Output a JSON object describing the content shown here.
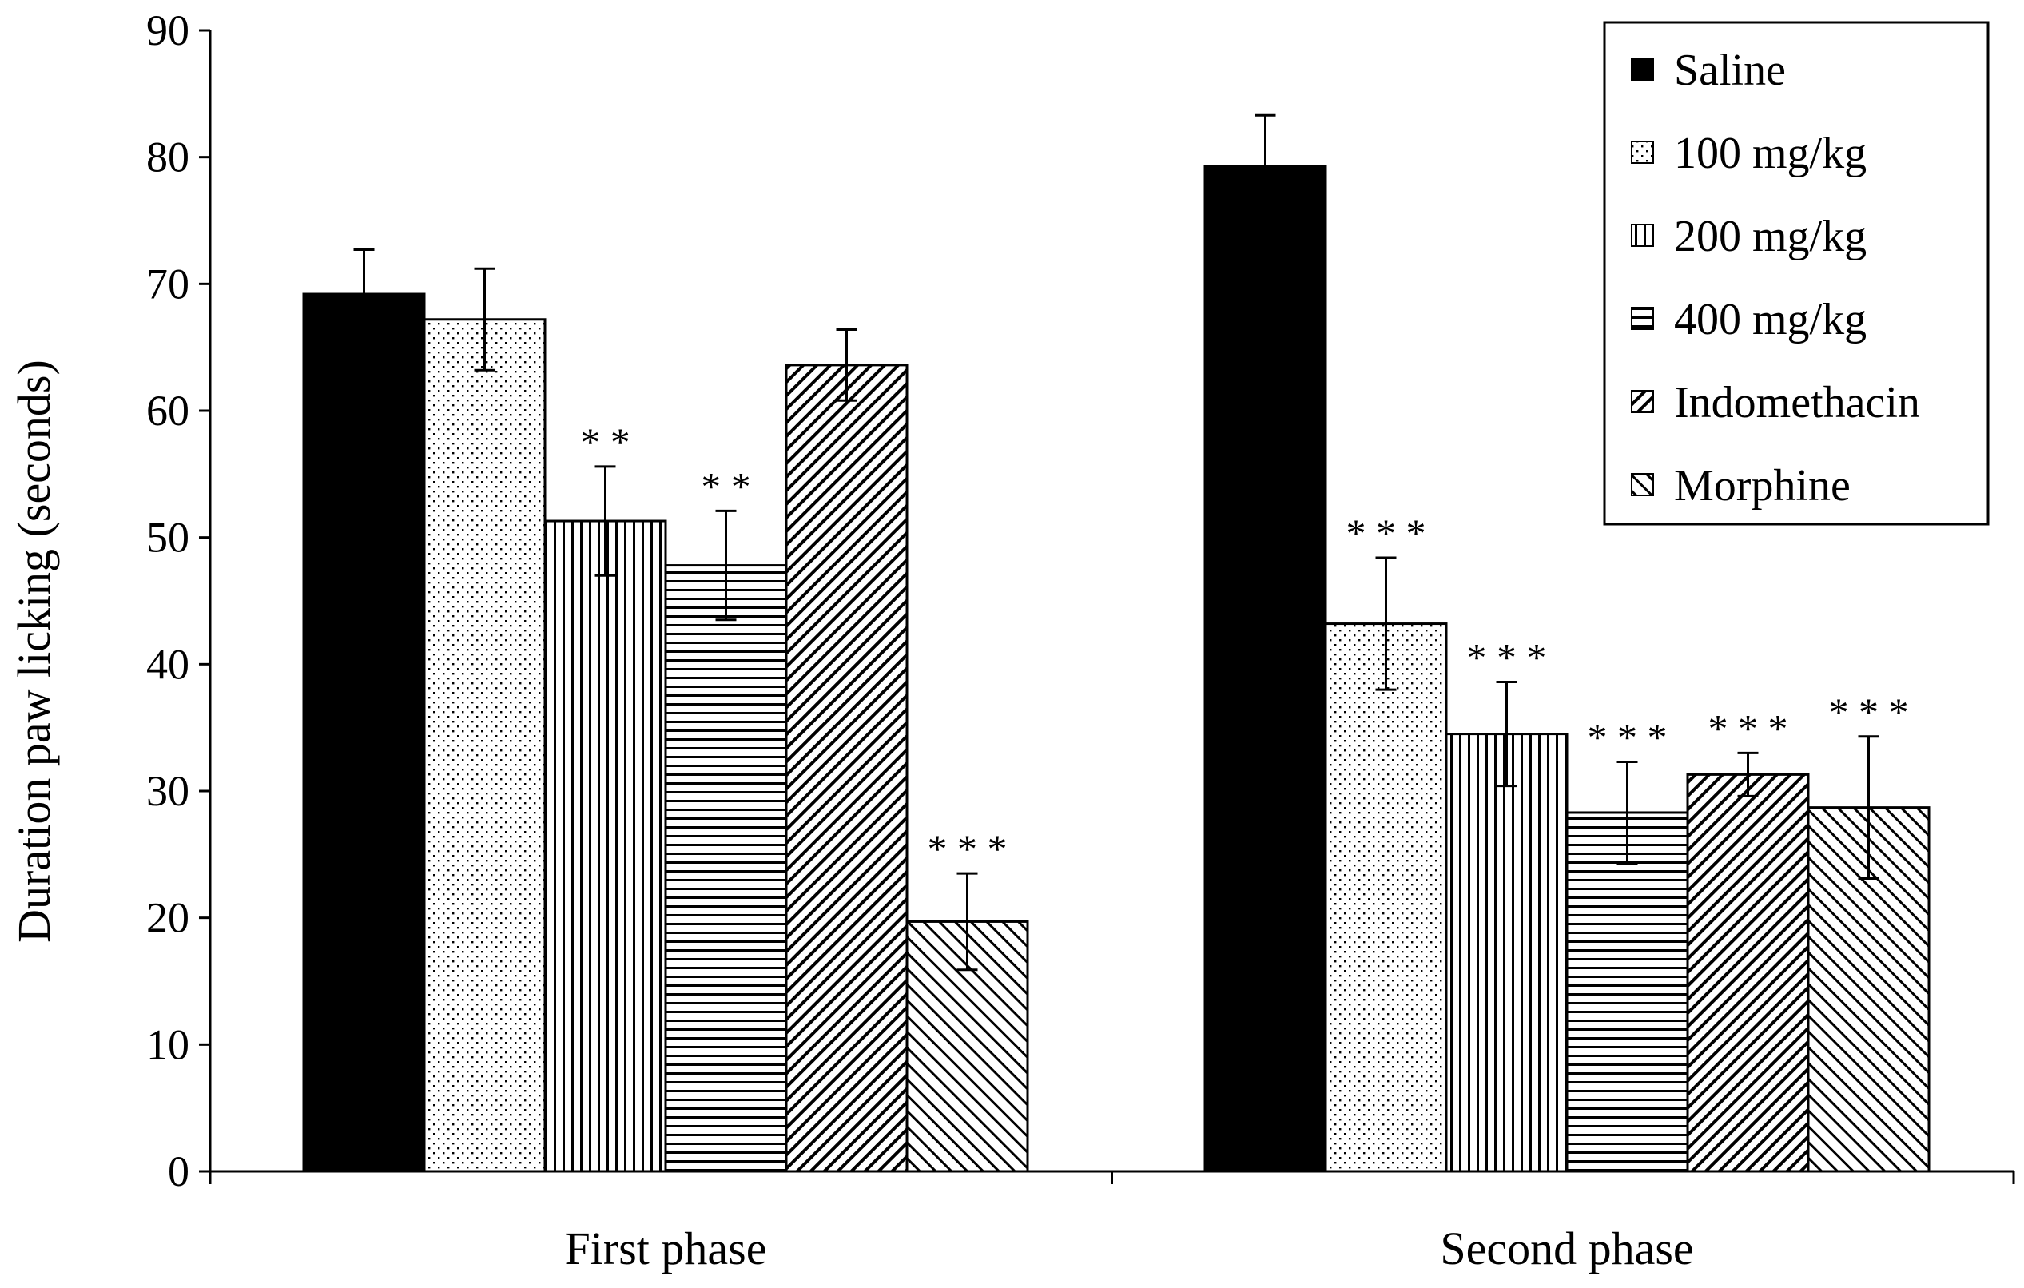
{
  "chart_data": {
    "type": "bar",
    "title": "",
    "xlabel": "",
    "ylabel": "Duration paw licking (seconds)",
    "ylim": [
      0,
      90
    ],
    "yticks": [
      0,
      10,
      20,
      30,
      40,
      50,
      60,
      70,
      80,
      90
    ],
    "grid": false,
    "legend_position": "top-right",
    "categories": [
      "First phase",
      "Second phase"
    ],
    "series": [
      {
        "name": "Saline",
        "pattern": "solid",
        "values": [
          69.2,
          79.3
        ],
        "errors": [
          3.5,
          4.0
        ],
        "significance": [
          "",
          ""
        ]
      },
      {
        "name": "100 mg/kg",
        "pattern": "dots",
        "values": [
          67.2,
          43.2
        ],
        "errors": [
          4.0,
          5.2
        ],
        "significance": [
          "",
          "***"
        ]
      },
      {
        "name": "200 mg/kg",
        "pattern": "vertical",
        "values": [
          51.3,
          34.5
        ],
        "errors": [
          4.3,
          4.1
        ],
        "significance": [
          "**",
          "***"
        ]
      },
      {
        "name": "400 mg/kg",
        "pattern": "horizontal",
        "values": [
          47.8,
          28.3
        ],
        "errors": [
          4.3,
          4.0
        ],
        "significance": [
          "**",
          "***"
        ]
      },
      {
        "name": "Indomethacin",
        "pattern": "diag-down",
        "values": [
          63.6,
          31.3
        ],
        "errors": [
          2.8,
          1.7
        ],
        "significance": [
          "",
          "***"
        ]
      },
      {
        "name": "Morphine",
        "pattern": "diag-up",
        "values": [
          19.7,
          28.7
        ],
        "errors": [
          3.8,
          5.6
        ],
        "significance": [
          "***",
          "***"
        ]
      }
    ]
  }
}
